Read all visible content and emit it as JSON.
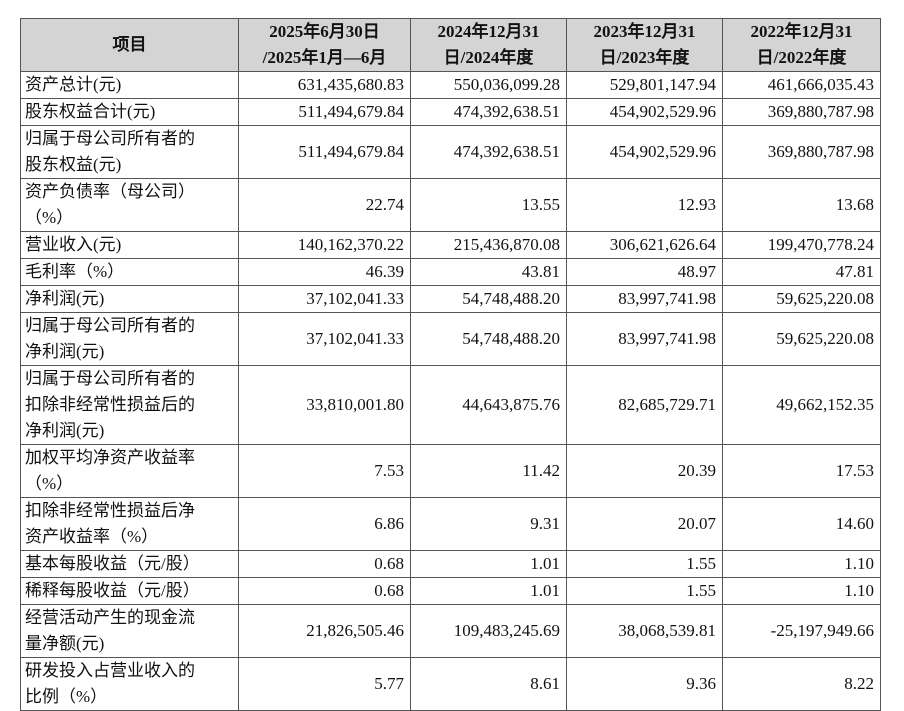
{
  "table": {
    "header": [
      [
        "项目"
      ],
      [
        "2025年6月30日",
        "/2025年1月—6月"
      ],
      [
        "2024年12月31",
        "日/2024年度"
      ],
      [
        "2023年12月31",
        "日/2023年度"
      ],
      [
        "2022年12月31",
        "日/2022年度"
      ]
    ],
    "rows": [
      {
        "label": [
          "资产总计(元)"
        ],
        "values": [
          "631,435,680.83",
          "550,036,099.28",
          "529,801,147.94",
          "461,666,035.43"
        ]
      },
      {
        "label": [
          "股东权益合计(元)"
        ],
        "values": [
          "511,494,679.84",
          "474,392,638.51",
          "454,902,529.96",
          "369,880,787.98"
        ]
      },
      {
        "label": [
          "归属于母公司所有者的",
          "股东权益(元)"
        ],
        "values": [
          "511,494,679.84",
          "474,392,638.51",
          "454,902,529.96",
          "369,880,787.98"
        ]
      },
      {
        "label": [
          "资产负债率（母公司）",
          "（%）"
        ],
        "values": [
          "22.74",
          "13.55",
          "12.93",
          "13.68"
        ]
      },
      {
        "label": [
          "营业收入(元)"
        ],
        "values": [
          "140,162,370.22",
          "215,436,870.08",
          "306,621,626.64",
          "199,470,778.24"
        ]
      },
      {
        "label": [
          "毛利率（%）"
        ],
        "values": [
          "46.39",
          "43.81",
          "48.97",
          "47.81"
        ]
      },
      {
        "label": [
          "净利润(元)"
        ],
        "values": [
          "37,102,041.33",
          "54,748,488.20",
          "83,997,741.98",
          "59,625,220.08"
        ]
      },
      {
        "label": [
          "归属于母公司所有者的",
          "净利润(元)"
        ],
        "values": [
          "37,102,041.33",
          "54,748,488.20",
          "83,997,741.98",
          "59,625,220.08"
        ]
      },
      {
        "label": [
          "归属于母公司所有者的",
          "扣除非经常性损益后的",
          "净利润(元)"
        ],
        "values": [
          "33,810,001.80",
          "44,643,875.76",
          "82,685,729.71",
          "49,662,152.35"
        ]
      },
      {
        "label": [
          "加权平均净资产收益率",
          "（%）"
        ],
        "values": [
          "7.53",
          "11.42",
          "20.39",
          "17.53"
        ]
      },
      {
        "label": [
          "扣除非经常性损益后净",
          "资产收益率（%）"
        ],
        "values": [
          "6.86",
          "9.31",
          "20.07",
          "14.60"
        ]
      },
      {
        "label": [
          "基本每股收益（元/股）"
        ],
        "values": [
          "0.68",
          "1.01",
          "1.55",
          "1.10"
        ]
      },
      {
        "label": [
          "稀释每股收益（元/股）"
        ],
        "values": [
          "0.68",
          "1.01",
          "1.55",
          "1.10"
        ]
      },
      {
        "label": [
          "经营活动产生的现金流",
          "量净额(元)"
        ],
        "values": [
          "21,826,505.46",
          "109,483,245.69",
          "38,068,539.81",
          "-25,197,949.66"
        ]
      },
      {
        "label": [
          "研发投入占营业收入的",
          "比例（%）"
        ],
        "values": [
          "5.77",
          "8.61",
          "9.36",
          "8.22"
        ]
      }
    ]
  }
}
